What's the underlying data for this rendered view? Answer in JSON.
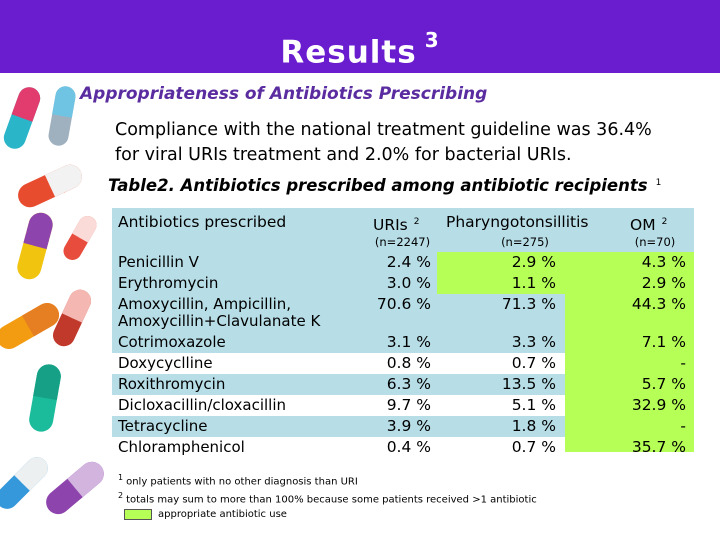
{
  "title": "Results",
  "title_superscript": "3",
  "subtitle": "Appropriateness of Antibiotics Prescribing",
  "summary_line1": "Compliance with the national treatment guideline was 36.4%",
  "summary_line2": "for viral URIs treatment and 2.0% for bacterial URIs.",
  "table": {
    "caption": "Table2. Antibiotics prescribed among antibiotic recipients",
    "caption_superscript": "1",
    "headers": {
      "drug": "Antibiotics prescribed",
      "uris": "URIs",
      "uris_sup": "2",
      "pharyngo": "Pharyngotonsillitis",
      "om": "OM",
      "om_sup": "2"
    },
    "subheaders": {
      "uris": "(n=2247)",
      "pharyngo": "(n=275)",
      "om": "(n=70)"
    },
    "rows": [
      {
        "drug": "Penicillin V",
        "uris": "2.4 %",
        "pharyngo": "2.9 %",
        "om": "4.3 %",
        "pharyngo_appropriate": true
      },
      {
        "drug": "Erythromycin",
        "uris": "3.0 %",
        "pharyngo": "1.1 %",
        "om": "2.9 %",
        "pharyngo_appropriate": true
      },
      {
        "drug": "Amoxycillin, Ampicillin,",
        "drug_line2": "Amoxycillin+Clavulanate K",
        "uris": "70.6 %",
        "pharyngo": "71.3 %",
        "om": "44.3 %",
        "om_appropriate": true
      },
      {
        "drug": "Cotrimoxazole",
        "uris": "3.1 %",
        "pharyngo": "3.3 %",
        "om": "7.1 %"
      },
      {
        "drug": "Doxycyclline",
        "uris": "0.8 %",
        "pharyngo": "0.7 %",
        "om": "-"
      },
      {
        "drug": "Roxithromycin",
        "uris": "6.3 %",
        "pharyngo": "13.5 %",
        "om": "5.7 %"
      },
      {
        "drug": "Dicloxacillin/cloxacillin",
        "uris": "9.7 %",
        "pharyngo": "5.1 %",
        "om": "32.9 %"
      },
      {
        "drug": "Tetracycline",
        "uris": "3.9 %",
        "pharyngo": "1.8 %",
        "om": "-"
      },
      {
        "drug": "Chloramphenicol",
        "uris": "0.4 %",
        "pharyngo": "0.7 %",
        "om": "35.7 %"
      }
    ]
  },
  "footnotes": {
    "note1_marker": "1",
    "note1": "only patients with no other diagnosis than URI",
    "note2_marker": "2",
    "note2": "totals may sum to more than 100% because some patients received >1 antibiotic",
    "legend": "appropriate antibiotic use"
  },
  "colors": {
    "banner": "#6a1ccf",
    "subtitle": "#5a2ca0",
    "row_band": "#b7dde6",
    "appropriate": "#b6ff57"
  }
}
